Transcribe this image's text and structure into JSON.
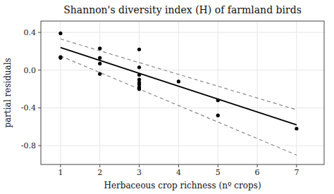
{
  "chart_data": {
    "type": "scatter",
    "title": "Shannon's diversity index (H) of farmland birds",
    "xlabel": "Herbaceous crop richness (nº crops)",
    "ylabel": "partial residuals",
    "xlim": [
      0.5,
      7.7
    ],
    "ylim": [
      -1.0,
      0.52
    ],
    "xticks": [
      1,
      2,
      3,
      4,
      5,
      6,
      7
    ],
    "yticks": [
      -0.8,
      -0.4,
      {
        "value": 0.0,
        "label": "0.0"
      },
      0.4
    ],
    "series": [
      {
        "type": "scatter",
        "color": "#000000",
        "marker": "circle",
        "x": [
          1,
          1,
          1,
          2,
          2,
          2,
          2,
          3,
          3,
          3,
          3,
          3,
          3,
          3,
          3,
          4,
          5,
          5,
          7
        ],
        "values": [
          0.39,
          0.14,
          0.13,
          0.23,
          0.13,
          0.07,
          -0.04,
          0.22,
          0.03,
          -0.05,
          -0.1,
          -0.13,
          -0.15,
          -0.18,
          -0.2,
          -0.12,
          -0.32,
          -0.48,
          -0.62
        ]
      },
      {
        "type": "line",
        "color": "#000000",
        "line_style": "solid",
        "x": [
          1,
          7
        ],
        "values": [
          0.24,
          -0.58
        ]
      },
      {
        "type": "line",
        "color": "#888888",
        "line_style": "dashed",
        "x": [
          1,
          7
        ],
        "values": [
          0.33,
          -0.42
        ]
      },
      {
        "type": "line",
        "color": "#888888",
        "line_style": "dashed",
        "x": [
          1,
          7
        ],
        "values": [
          0.15,
          -0.9
        ]
      }
    ]
  }
}
